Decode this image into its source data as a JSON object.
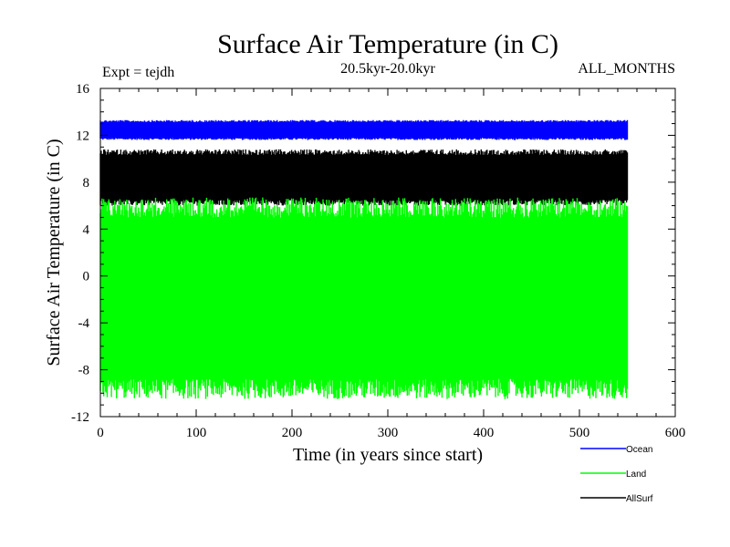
{
  "chart_data": {
    "type": "line",
    "title": "Surface Air Temperature (in C)",
    "subtitle": "20.5kyr-20.0kyr",
    "annotation_left": "Expt = tejdh",
    "annotation_right": "ALL_MONTHS",
    "xlabel": "Time (in years since start)",
    "ylabel": "Surface Air Temperature (in C)",
    "xlim": [
      0,
      600
    ],
    "ylim": [
      -12,
      16
    ],
    "xticks": [
      0,
      100,
      200,
      300,
      400,
      500,
      600
    ],
    "yticks": [
      -12,
      -8,
      -4,
      0,
      4,
      8,
      12,
      16
    ],
    "x_range_of_data": [
      0,
      550
    ],
    "grid": false,
    "legend_position": "bottom-right",
    "series": [
      {
        "name": "Ocean",
        "color": "#0000ff",
        "min_approx": 11.6,
        "max_approx": 13.3,
        "mean_approx": 12.4
      },
      {
        "name": "AllSurf",
        "color": "#000000",
        "min_approx": 6.0,
        "max_approx": 10.8,
        "mean_approx": 8.5
      },
      {
        "name": "Land",
        "color": "#00ff00",
        "min_approx": -10.5,
        "max_approx": 6.7,
        "mean_approx": -1.8
      }
    ]
  }
}
